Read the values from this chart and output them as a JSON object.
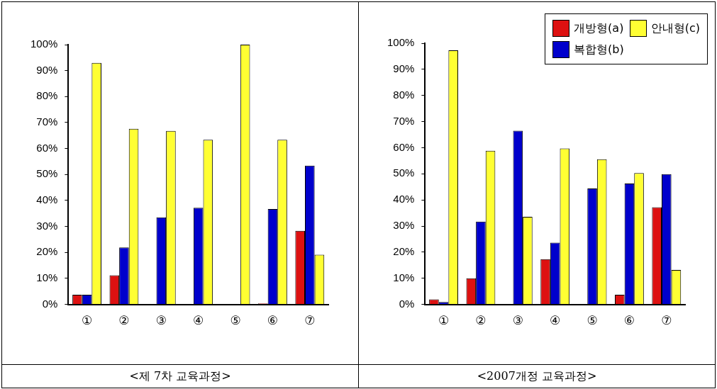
{
  "chart_data": [
    {
      "type": "bar",
      "title": "<제 7차 교육과정>",
      "categories": [
        "①",
        "②",
        "③",
        "④",
        "⑤",
        "⑥",
        "⑦"
      ],
      "ylim": [
        0,
        100
      ],
      "yticks": [
        {
          "value": 0,
          "label": "0%"
        },
        {
          "value": 10,
          "label": "10%"
        },
        {
          "value": 20,
          "label": "20%"
        },
        {
          "value": 30,
          "label": "30%"
        },
        {
          "value": 40,
          "label": "40%"
        },
        {
          "value": 50,
          "label": "50%"
        },
        {
          "value": 60,
          "label": "60%"
        },
        {
          "value": 70,
          "label": "70%"
        },
        {
          "value": 80,
          "label": "80%"
        },
        {
          "value": 90,
          "label": "90%"
        },
        {
          "value": 100,
          "label": "100%"
        }
      ],
      "grid": false,
      "legend": false,
      "series": [
        {
          "color": "#dd1111",
          "values": [
            3.7,
            11.2,
            0,
            0,
            0,
            0.4,
            28.3
          ]
        },
        {
          "color": "#0000cc",
          "values": [
            3.7,
            21.9,
            33.5,
            37.2,
            0,
            36.7,
            53.4
          ]
        },
        {
          "color": "#ffff33",
          "values": [
            93,
            67.6,
            66.8,
            63.4,
            100,
            63.4,
            19.1
          ]
        }
      ]
    },
    {
      "type": "bar",
      "title": "<2007개정 교육과정>",
      "categories": [
        "①",
        "②",
        "③",
        "④",
        "⑤",
        "⑥",
        "⑦"
      ],
      "ylim": [
        0,
        100
      ],
      "yticks": [
        {
          "value": 0,
          "label": "0%"
        },
        {
          "value": 10,
          "label": "10%"
        },
        {
          "value": 20,
          "label": "20%"
        },
        {
          "value": 30,
          "label": "30%"
        },
        {
          "value": 40,
          "label": "40%"
        },
        {
          "value": 50,
          "label": "50%"
        },
        {
          "value": 60,
          "label": "60%"
        },
        {
          "value": 70,
          "label": "70%"
        },
        {
          "value": 80,
          "label": "80%"
        },
        {
          "value": 90,
          "label": "90%"
        },
        {
          "value": 100,
          "label": "100%"
        }
      ],
      "grid": false,
      "legend": "top right",
      "series": [
        {
          "name": "개방형(a)",
          "color": "#dd1111",
          "values": [
            1.9,
            10,
            0,
            17.3,
            0,
            3.7,
            37.2
          ]
        },
        {
          "name": "복합형(b)",
          "color": "#0000cc",
          "values": [
            0.9,
            31.7,
            66.5,
            23.6,
            44.4,
            46.3,
            49.9
          ]
        },
        {
          "name": "안내형(c)",
          "color": "#ffff33",
          "values": [
            97.3,
            58.8,
            33.5,
            59.7,
            55.6,
            50.3,
            13.2
          ]
        }
      ]
    }
  ]
}
